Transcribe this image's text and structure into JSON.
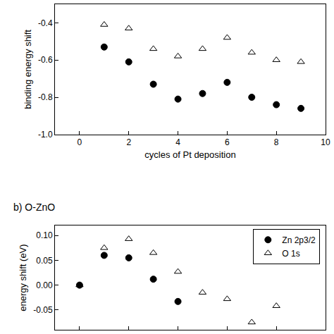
{
  "chart_data": [
    {
      "type": "scatter",
      "x_label": "cycles of Pt deposition",
      "y_label": "binding energy shift",
      "xlim": [
        -1,
        10
      ],
      "xticks": [
        0,
        2,
        4,
        6,
        8,
        10
      ],
      "ylim": [
        -1.0,
        -0.3
      ],
      "yticks": [
        {
          "value": -1.0,
          "label": "-1.0"
        },
        {
          "value": -0.8,
          "label": "-0.8"
        },
        {
          "value": -0.6,
          "label": "-0.6"
        },
        {
          "value": -0.4,
          "label": "-0.4"
        }
      ],
      "grid": false,
      "series": [
        {
          "color": "#000000",
          "marker": "circle",
          "x": [
            1,
            2,
            3,
            4,
            5,
            6,
            7,
            8,
            9
          ],
          "values": [
            -0.53,
            -0.61,
            -0.73,
            -0.81,
            -0.78,
            -0.72,
            -0.8,
            -0.84,
            -0.86
          ]
        },
        {
          "color": "#000000",
          "marker": "triangle-up-open",
          "x": [
            1,
            2,
            3,
            4,
            5,
            6,
            7,
            8,
            9
          ],
          "values": [
            -0.41,
            -0.43,
            -0.54,
            -0.58,
            -0.54,
            -0.48,
            -0.56,
            -0.6,
            -0.61
          ]
        }
      ]
    },
    {
      "type": "scatter",
      "title": "b) O-ZnO",
      "y_label": "energy shift (eV)",
      "xlim": [
        -1,
        10
      ],
      "xticks": [
        0,
        2,
        4,
        6,
        8,
        10
      ],
      "ylim": [
        -0.09,
        0.12
      ],
      "yticks": [
        -0.05,
        {
          "value": 0,
          "label": "0.00"
        },
        0.05,
        {
          "value": 0.1,
          "label": "0.10"
        }
      ],
      "tick_labels": "y",
      "grid": false,
      "legend": "top right",
      "series": [
        {
          "name": "Zn 2p3/2",
          "color": "#000000",
          "marker": "circle",
          "x": [
            0,
            1,
            2,
            3,
            4
          ],
          "values": [
            0,
            0.06,
            0.055,
            0.012,
            -0.033
          ]
        },
        {
          "name": "O 1s",
          "color": "#000000",
          "marker": "triangle-up-open",
          "x": [
            0,
            1,
            2,
            3,
            4,
            5,
            6,
            7,
            8
          ],
          "values": [
            0,
            0.075,
            0.093,
            0.065,
            0.027,
            -0.015,
            -0.028,
            -0.075,
            -0.042
          ]
        }
      ]
    }
  ]
}
